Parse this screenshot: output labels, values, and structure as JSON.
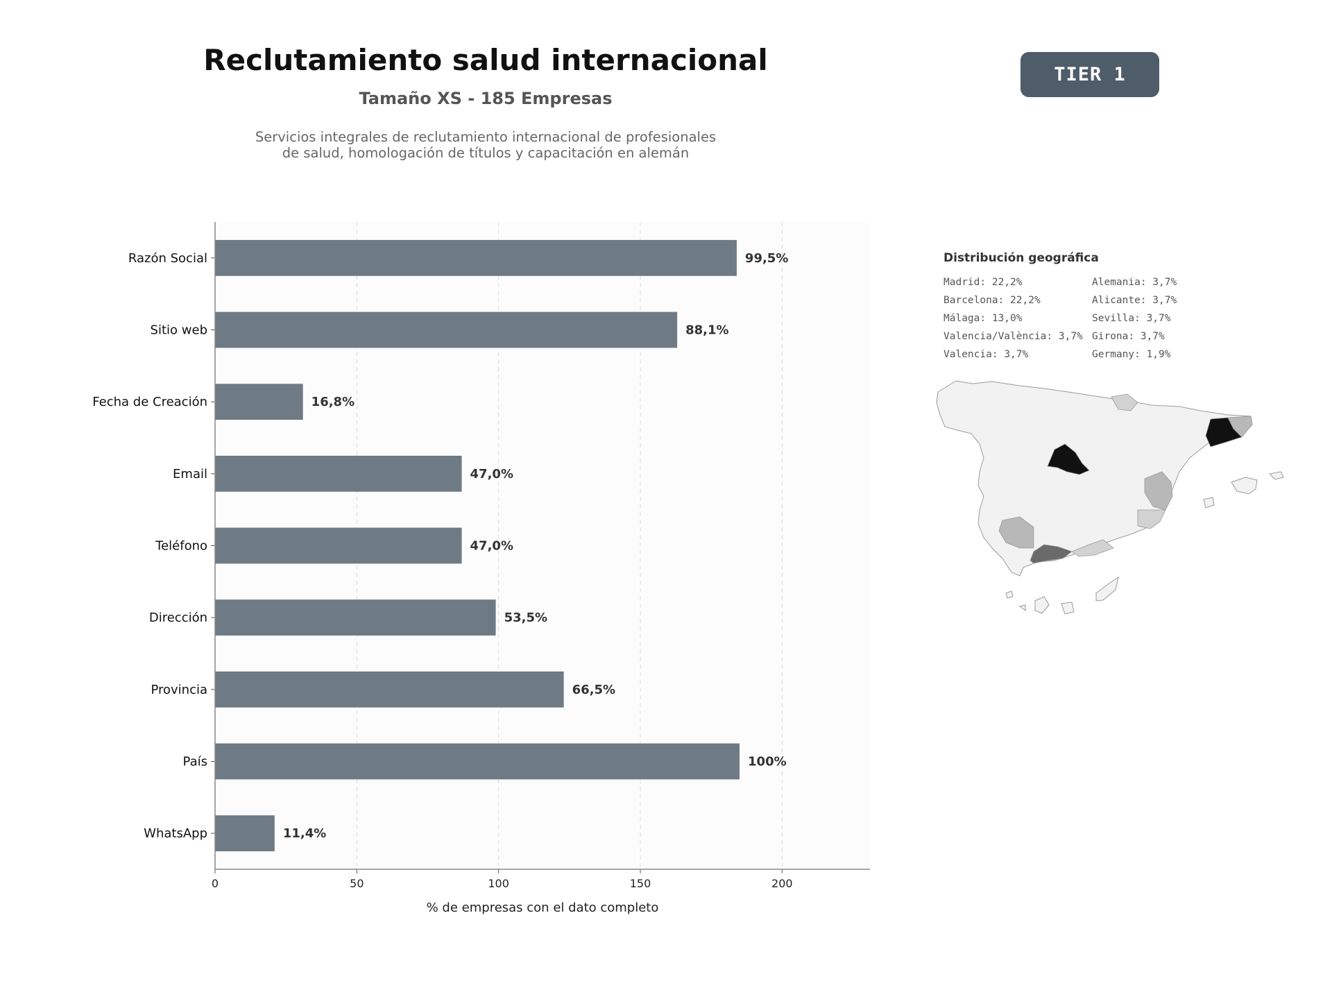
{
  "header": {
    "title": "Reclutamiento salud internacional",
    "subtitle": "Tamaño XS - 185 Empresas",
    "description_line1": "Servicios integrales de reclutamiento internacional de profesionales",
    "description_line2": "de salud, homologación de títulos y capacitación en alemán",
    "badge": "TIER 1"
  },
  "chart_data": {
    "type": "bar",
    "orientation": "horizontal",
    "categories": [
      "Razón Social",
      "Sitio web",
      "Fecha de Creación",
      "Email",
      "Teléfono",
      "Dirección",
      "Provincia",
      "País",
      "WhatsApp"
    ],
    "values": [
      184,
      163,
      31,
      87,
      87,
      99,
      123,
      185,
      21
    ],
    "value_labels": [
      "99,5%",
      "88,1%",
      "16,8%",
      "47,0%",
      "47,0%",
      "53,5%",
      "66,5%",
      "100%",
      "11,4%"
    ],
    "xlabel": "% de empresas con el dato completo",
    "xlim": [
      0,
      231
    ],
    "xticks": [
      0,
      50,
      100,
      150,
      200
    ],
    "grid": "vertical dashed",
    "bar_color": "#6e7a84"
  },
  "geo": {
    "title": "Distribución geográfica",
    "col1": [
      "Madrid: 22,2%",
      "Barcelona: 22,2%",
      "Málaga: 13,0%",
      "Valencia/València: 3,7%",
      "Valencia: 3,7%"
    ],
    "col2": [
      "Alemania: 3,7%",
      "Alicante: 3,7%",
      "Sevilla: 3,7%",
      "Girona: 3,7%",
      "Germany: 1,9%"
    ]
  },
  "map_colors": {
    "base": "#f2f2f2",
    "border": "#9a9a9a",
    "light": "#d2d2d2",
    "mid": "#b8b8b8",
    "dark": "#6a6a6a",
    "black": "#111111"
  }
}
